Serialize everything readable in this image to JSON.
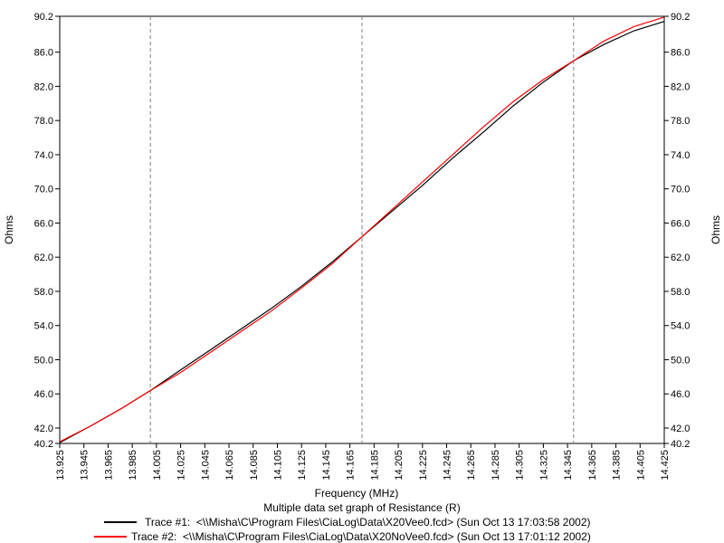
{
  "chart_data": {
    "type": "line",
    "xlabel": "Frequency (MHz)",
    "ylabel": "Ohms",
    "subtitle": "Multiple data set graph of Resistance (R)",
    "xlim": [
      13.925,
      14.425
    ],
    "ylim": [
      40.2,
      90.2
    ],
    "x_ticks": [
      "13.925",
      "13.945",
      "13.965",
      "13.985",
      "14.005",
      "14.025",
      "14.045",
      "14.065",
      "14.085",
      "14.105",
      "14.125",
      "14.145",
      "14.165",
      "14.185",
      "14.205",
      "14.225",
      "14.245",
      "14.265",
      "14.285",
      "14.305",
      "14.325",
      "14.345",
      "14.365",
      "14.385",
      "14.405",
      "14.425"
    ],
    "y_ticks": [
      "40.2",
      "42.0",
      "46.0",
      "50.0",
      "54.0",
      "58.0",
      "62.0",
      "66.0",
      "70.0",
      "74.0",
      "78.0",
      "82.0",
      "86.0",
      "90.2"
    ],
    "vlines": [
      14.0,
      14.175,
      14.35
    ],
    "grid": false,
    "legend_position": "bottom",
    "series": [
      {
        "name": "Trace #1:  <\\\\Misha\\C\\Program Files\\CiaLog\\Data\\X20Vee0.fcd> (Sun Oct 13 17:03:58 2002)",
        "color": "#000000",
        "x": [
          13.925,
          13.95,
          13.975,
          14.0,
          14.025,
          14.05,
          14.075,
          14.1,
          14.125,
          14.15,
          14.175,
          14.2,
          14.225,
          14.25,
          14.275,
          14.3,
          14.325,
          14.35,
          14.375,
          14.4,
          14.425
        ],
        "y": [
          40.3,
          42.2,
          44.2,
          46.4,
          48.8,
          51.2,
          53.6,
          56.0,
          58.6,
          61.4,
          64.4,
          67.4,
          70.4,
          73.6,
          76.6,
          79.7,
          82.5,
          85.0,
          86.9,
          88.5,
          89.6
        ]
      },
      {
        "name": "Trace #2:  <\\\\Misha\\C\\Program Files\\CiaLog\\Data\\X20NoVee0.fcd> (Sun Oct 13 17:01:12 2002)",
        "color": "#ff0000",
        "x": [
          13.925,
          13.95,
          13.975,
          14.0,
          14.025,
          14.05,
          14.075,
          14.1,
          14.125,
          14.15,
          14.175,
          14.2,
          14.225,
          14.25,
          14.275,
          14.3,
          14.325,
          14.35,
          14.375,
          14.4,
          14.425
        ],
        "y": [
          40.4,
          42.2,
          44.2,
          46.4,
          48.5,
          50.9,
          53.3,
          55.7,
          58.4,
          61.2,
          64.4,
          67.6,
          70.8,
          74.0,
          77.2,
          80.2,
          82.8,
          85.0,
          87.3,
          89.0,
          90.1
        ]
      }
    ]
  }
}
